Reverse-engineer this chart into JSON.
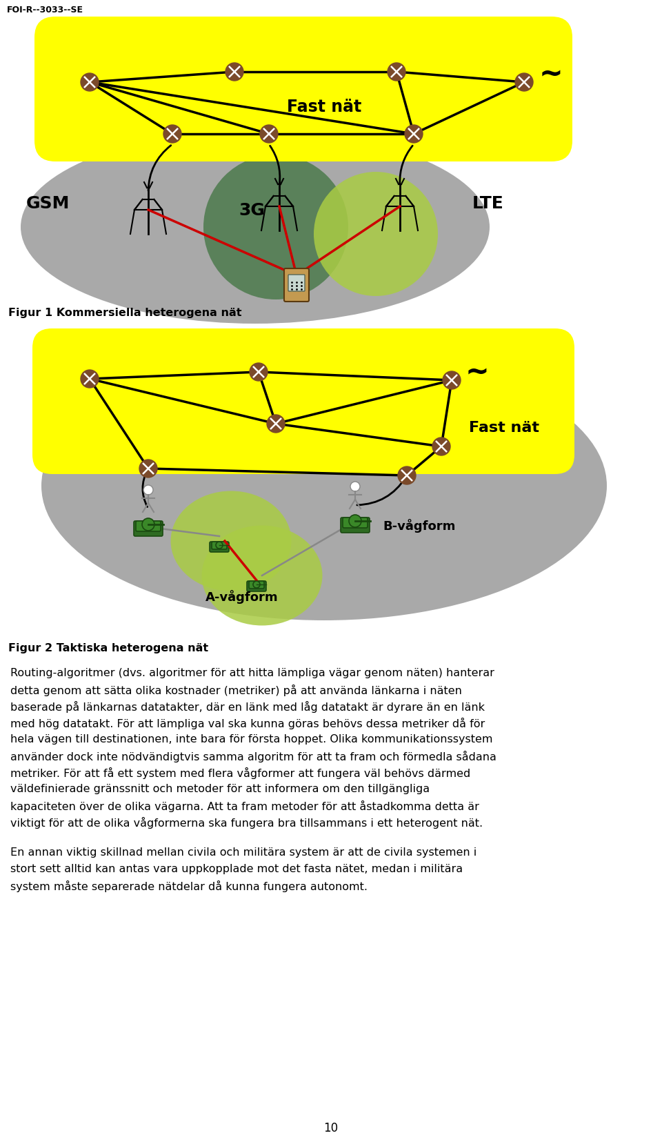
{
  "header_text": "FOI-R--3033--SE",
  "fig1_caption": "Figur 1 Kommersiella heterogena nät",
  "fig2_caption": "Figur 2 Taktiska heterogena nät",
  "body_text": "Routing-algoritmer (dvs. algoritmer för att hitta lämpliga vägar genom näten) hanterar detta genom att sätta olika kostnader (metriker) på att använda länkarna i näten baserade på länkarnas datatakter, där en länk med låg datatakt är dyrare än en länk med hög datatakt. För att lämpliga val ska kunna göras behövs dessa metriker då för hela vägen till destinationen, inte bara för första hoppet. Olika kommunikationssystem använder dock inte nödvändigtvis samma algoritm för att ta fram och förmedla sådana metriker. För att få ett system med flera vågformer att fungera väl behövs därmed väldefinierade gränssnitt och metoder för att informera om den tillgängliga kapaciteten över de olika vägarna. Att ta fram metoder för att åstadkomma detta är viktigt för att de olika vågformerna ska fungera bra tillsammans i ett heterogent nät.",
  "body_text2": "En annan viktig skillnad mellan civila och militära system är att de civila systemen i stort sett alltid kan antas vara uppkopplade mot det fasta nätet, medan i militära system måste separerade nätdelar då kunna fungera autonomt.",
  "page_number": "10",
  "yellow_color": "#FFFF00",
  "gray_color": "#A0A0A0",
  "green_dark": "#4D7A4D",
  "green_light": "#AACC44",
  "node_color": "#7B4A2A",
  "red": "#CC0000",
  "white": "#FFFFFF",
  "bg": "#FFFFFF"
}
